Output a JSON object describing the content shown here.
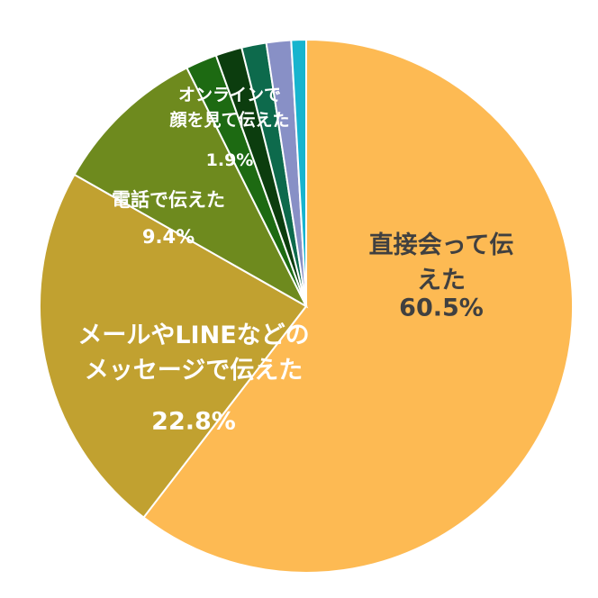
{
  "chart_data": {
    "type": "pie",
    "categories": [
      "直接会って伝えた",
      "メールやLINEなどの\nメッセージで伝えた",
      "電話で伝えた",
      "オンラインで\n顔を見て伝えた",
      null,
      null,
      null,
      null
    ],
    "values": [
      60.5,
      22.8,
      9.4,
      1.9,
      1.6,
      1.5,
      1.5,
      0.9
    ],
    "value_labels": [
      "60.5%",
      "22.8%",
      "9.4%",
      "1.9%",
      null,
      null,
      null,
      null
    ],
    "colors": [
      "#FDBA53",
      "#C1A130",
      "#6E8A1E",
      "#1D6A12",
      "#0C3D0E",
      "#0D6A4C",
      "#8890C6",
      "#17B4CE"
    ]
  }
}
